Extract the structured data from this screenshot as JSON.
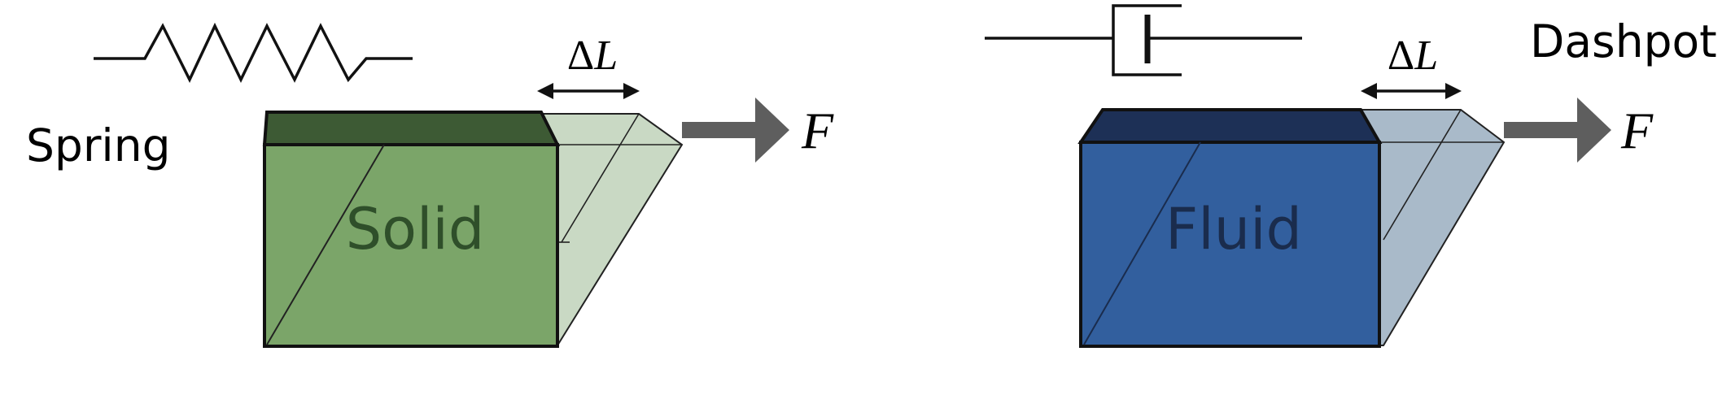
{
  "left_panel": {
    "element_label": "Spring",
    "block_label": "Solid",
    "displacement_label": {
      "delta": "Δ",
      "var": "L"
    },
    "force_label": "F",
    "colors": {
      "front": "#7ba569",
      "top": "#3d5a34",
      "ghost": "#c9d9c4",
      "text": "#2f4f2a"
    }
  },
  "right_panel": {
    "element_label": "Dashpot",
    "block_label": "Fluid",
    "displacement_label": {
      "delta": "Δ",
      "var": "L"
    },
    "force_label": "F",
    "colors": {
      "front": "#325f9e",
      "top": "#1d3056",
      "ghost": "#a9bac9",
      "text": "#1a2c4d"
    }
  },
  "common": {
    "arrow_color": "#5e5e5e",
    "line_color": "#111111"
  }
}
